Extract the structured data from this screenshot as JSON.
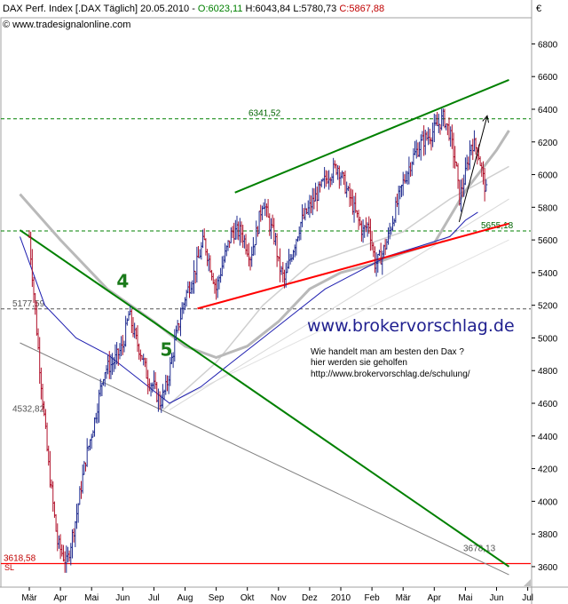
{
  "header": {
    "title": "DAX Perf. Index [.DAX  Täglich] 20.05.2010 - ",
    "open": "O:6023,11",
    "hl": " H:6043,84 L:5780,73 ",
    "close": "C:5867,88",
    "source": "© www.tradesignalonline.com",
    "currency": "€"
  },
  "chart_data": {
    "type": "line",
    "title": "DAX Perf. Index [.DAX  Täglich] 20.05.2010",
    "ylim": [
      3480,
      6960
    ],
    "yticks": [
      3600,
      3800,
      4000,
      4200,
      4400,
      4600,
      4800,
      5000,
      5200,
      5400,
      5600,
      5800,
      6000,
      6200,
      6400,
      6600,
      6800
    ],
    "months": [
      "Mär",
      "Apr",
      "Mai",
      "Jun",
      "Jul",
      "Aug",
      "Sep",
      "Okt",
      "Nov",
      "Dez",
      "2010",
      "Feb",
      "Mär",
      "Apr",
      "Mai",
      "Jun",
      "Jul"
    ],
    "price_path": [
      [
        0,
        5620
      ],
      [
        0.3,
        4900
      ],
      [
        0.6,
        4250
      ],
      [
        0.9,
        3750
      ],
      [
        1.2,
        3618
      ],
      [
        1.5,
        3900
      ],
      [
        1.8,
        4250
      ],
      [
        2.1,
        4500
      ],
      [
        2.4,
        4800
      ],
      [
        2.7,
        4850
      ],
      [
        3.0,
        4950
      ],
      [
        3.2,
        5150
      ],
      [
        3.4,
        5000
      ],
      [
        3.6,
        4900
      ],
      [
        3.8,
        4750
      ],
      [
        4.0,
        4700
      ],
      [
        4.2,
        4600
      ],
      [
        4.4,
        4700
      ],
      [
        4.7,
        5000
      ],
      [
        5.0,
        5250
      ],
      [
        5.3,
        5400
      ],
      [
        5.6,
        5600
      ],
      [
        5.8,
        5450
      ],
      [
        6.0,
        5300
      ],
      [
        6.2,
        5450
      ],
      [
        6.5,
        5650
      ],
      [
        6.8,
        5650
      ],
      [
        7.1,
        5500
      ],
      [
        7.3,
        5650
      ],
      [
        7.5,
        5850
      ],
      [
        7.7,
        5700
      ],
      [
        7.9,
        5600
      ],
      [
        8.0,
        5450
      ],
      [
        8.2,
        5350
      ],
      [
        8.4,
        5500
      ],
      [
        8.7,
        5700
      ],
      [
        9.0,
        5800
      ],
      [
        9.3,
        5900
      ],
      [
        9.6,
        6000
      ],
      [
        9.9,
        6050
      ],
      [
        10.1,
        5950
      ],
      [
        10.3,
        5850
      ],
      [
        10.5,
        5750
      ],
      [
        10.7,
        5650
      ],
      [
        10.9,
        5700
      ],
      [
        11.1,
        5450
      ],
      [
        11.3,
        5500
      ],
      [
        11.5,
        5600
      ],
      [
        11.7,
        5750
      ],
      [
        12.0,
        5950
      ],
      [
        12.3,
        6100
      ],
      [
        12.6,
        6200
      ],
      [
        12.9,
        6250
      ],
      [
        13.1,
        6300
      ],
      [
        13.3,
        6350
      ],
      [
        13.5,
        6250
      ],
      [
        13.7,
        6050
      ],
      [
        13.8,
        5850
      ],
      [
        14.0,
        6000
      ],
      [
        14.2,
        6200
      ],
      [
        14.4,
        6150
      ],
      [
        14.6,
        5950
      ],
      [
        14.7,
        5867
      ]
    ],
    "ma_blue": [
      [
        -0.3,
        5620
      ],
      [
        0.5,
        5200
      ],
      [
        1.5,
        5000
      ],
      [
        2.5,
        4900
      ],
      [
        3.5,
        4750
      ],
      [
        4.5,
        4600
      ],
      [
        5.5,
        4700
      ],
      [
        6.5,
        4850
      ],
      [
        7.5,
        5000
      ],
      [
        8.5,
        5150
      ],
      [
        9.5,
        5300
      ],
      [
        10.5,
        5400
      ],
      [
        11.5,
        5500
      ],
      [
        12.5,
        5560
      ],
      [
        13.5,
        5620
      ],
      [
        14.0,
        5720
      ],
      [
        14.4,
        5770
      ]
    ],
    "ma_gray_thick": [
      [
        -0.3,
        5880
      ],
      [
        1,
        5600
      ],
      [
        2.5,
        5300
      ],
      [
        4,
        5100
      ],
      [
        5,
        4950
      ],
      [
        6,
        4880
      ],
      [
        7,
        4950
      ],
      [
        8,
        5100
      ],
      [
        9,
        5300
      ],
      [
        10,
        5400
      ],
      [
        11,
        5450
      ],
      [
        12,
        5520
      ],
      [
        13,
        5580
      ],
      [
        14,
        5900
      ],
      [
        15,
        6150
      ],
      [
        15.4,
        6270
      ]
    ],
    "ma_gray_mid": [
      [
        4.3,
        4560
      ],
      [
        6,
        4850
      ],
      [
        7.5,
        5200
      ],
      [
        9,
        5450
      ],
      [
        10.5,
        5550
      ],
      [
        12,
        5650
      ],
      [
        13.5,
        5850
      ],
      [
        15.4,
        6050
      ]
    ],
    "ma_gray_light": [
      [
        4.5,
        4560
      ],
      [
        15.4,
        5850
      ]
    ],
    "ma_gray_faint": [
      [
        4.5,
        4600
      ],
      [
        15.4,
        5600
      ]
    ],
    "trendlines": [
      {
        "color": "#008000",
        "points": [
          [
            -0.3,
            5660
          ],
          [
            15.4,
            3600
          ]
        ]
      },
      {
        "color": "#808080",
        "points": [
          [
            -0.3,
            4970
          ],
          [
            15.4,
            3550
          ]
        ]
      },
      {
        "color": "#008000",
        "points": [
          [
            6.6,
            5890
          ],
          [
            15.4,
            6580
          ]
        ]
      },
      {
        "color": "#ff0000",
        "points": [
          [
            5.4,
            5180
          ],
          [
            15.4,
            5700
          ]
        ]
      }
    ],
    "levels": [
      {
        "value": 6341.52,
        "label": "6341,52",
        "color": "#008000"
      },
      {
        "value": 5655.18,
        "label": "5655,18",
        "color": "#008000"
      },
      {
        "value": 5177.59,
        "label": "5177,59",
        "color": "#555555"
      },
      {
        "value": 4532.82,
        "label": "4532,82",
        "color": "#555555"
      },
      {
        "value": 3678.13,
        "label": "3678,13",
        "color": "#555555"
      },
      {
        "value": 3618.58,
        "label": "3618,58",
        "color": "#c00000"
      }
    ],
    "waves": [
      {
        "label": "4",
        "x": 3.0,
        "y": 5310
      },
      {
        "label": "5",
        "x": 4.4,
        "y": 4890
      }
    ],
    "arrow": {
      "from": [
        13.8,
        5710
      ],
      "to": [
        14.7,
        6360
      ]
    }
  },
  "overlay": {
    "brand": "www.brokervorschlag.de",
    "note1": "Wie handelt man am besten  den Dax ?",
    "note2": "hier werden sie geholfen",
    "note3": "http://www.brokervorschlag.de/schulung/",
    "sl": "SL"
  }
}
